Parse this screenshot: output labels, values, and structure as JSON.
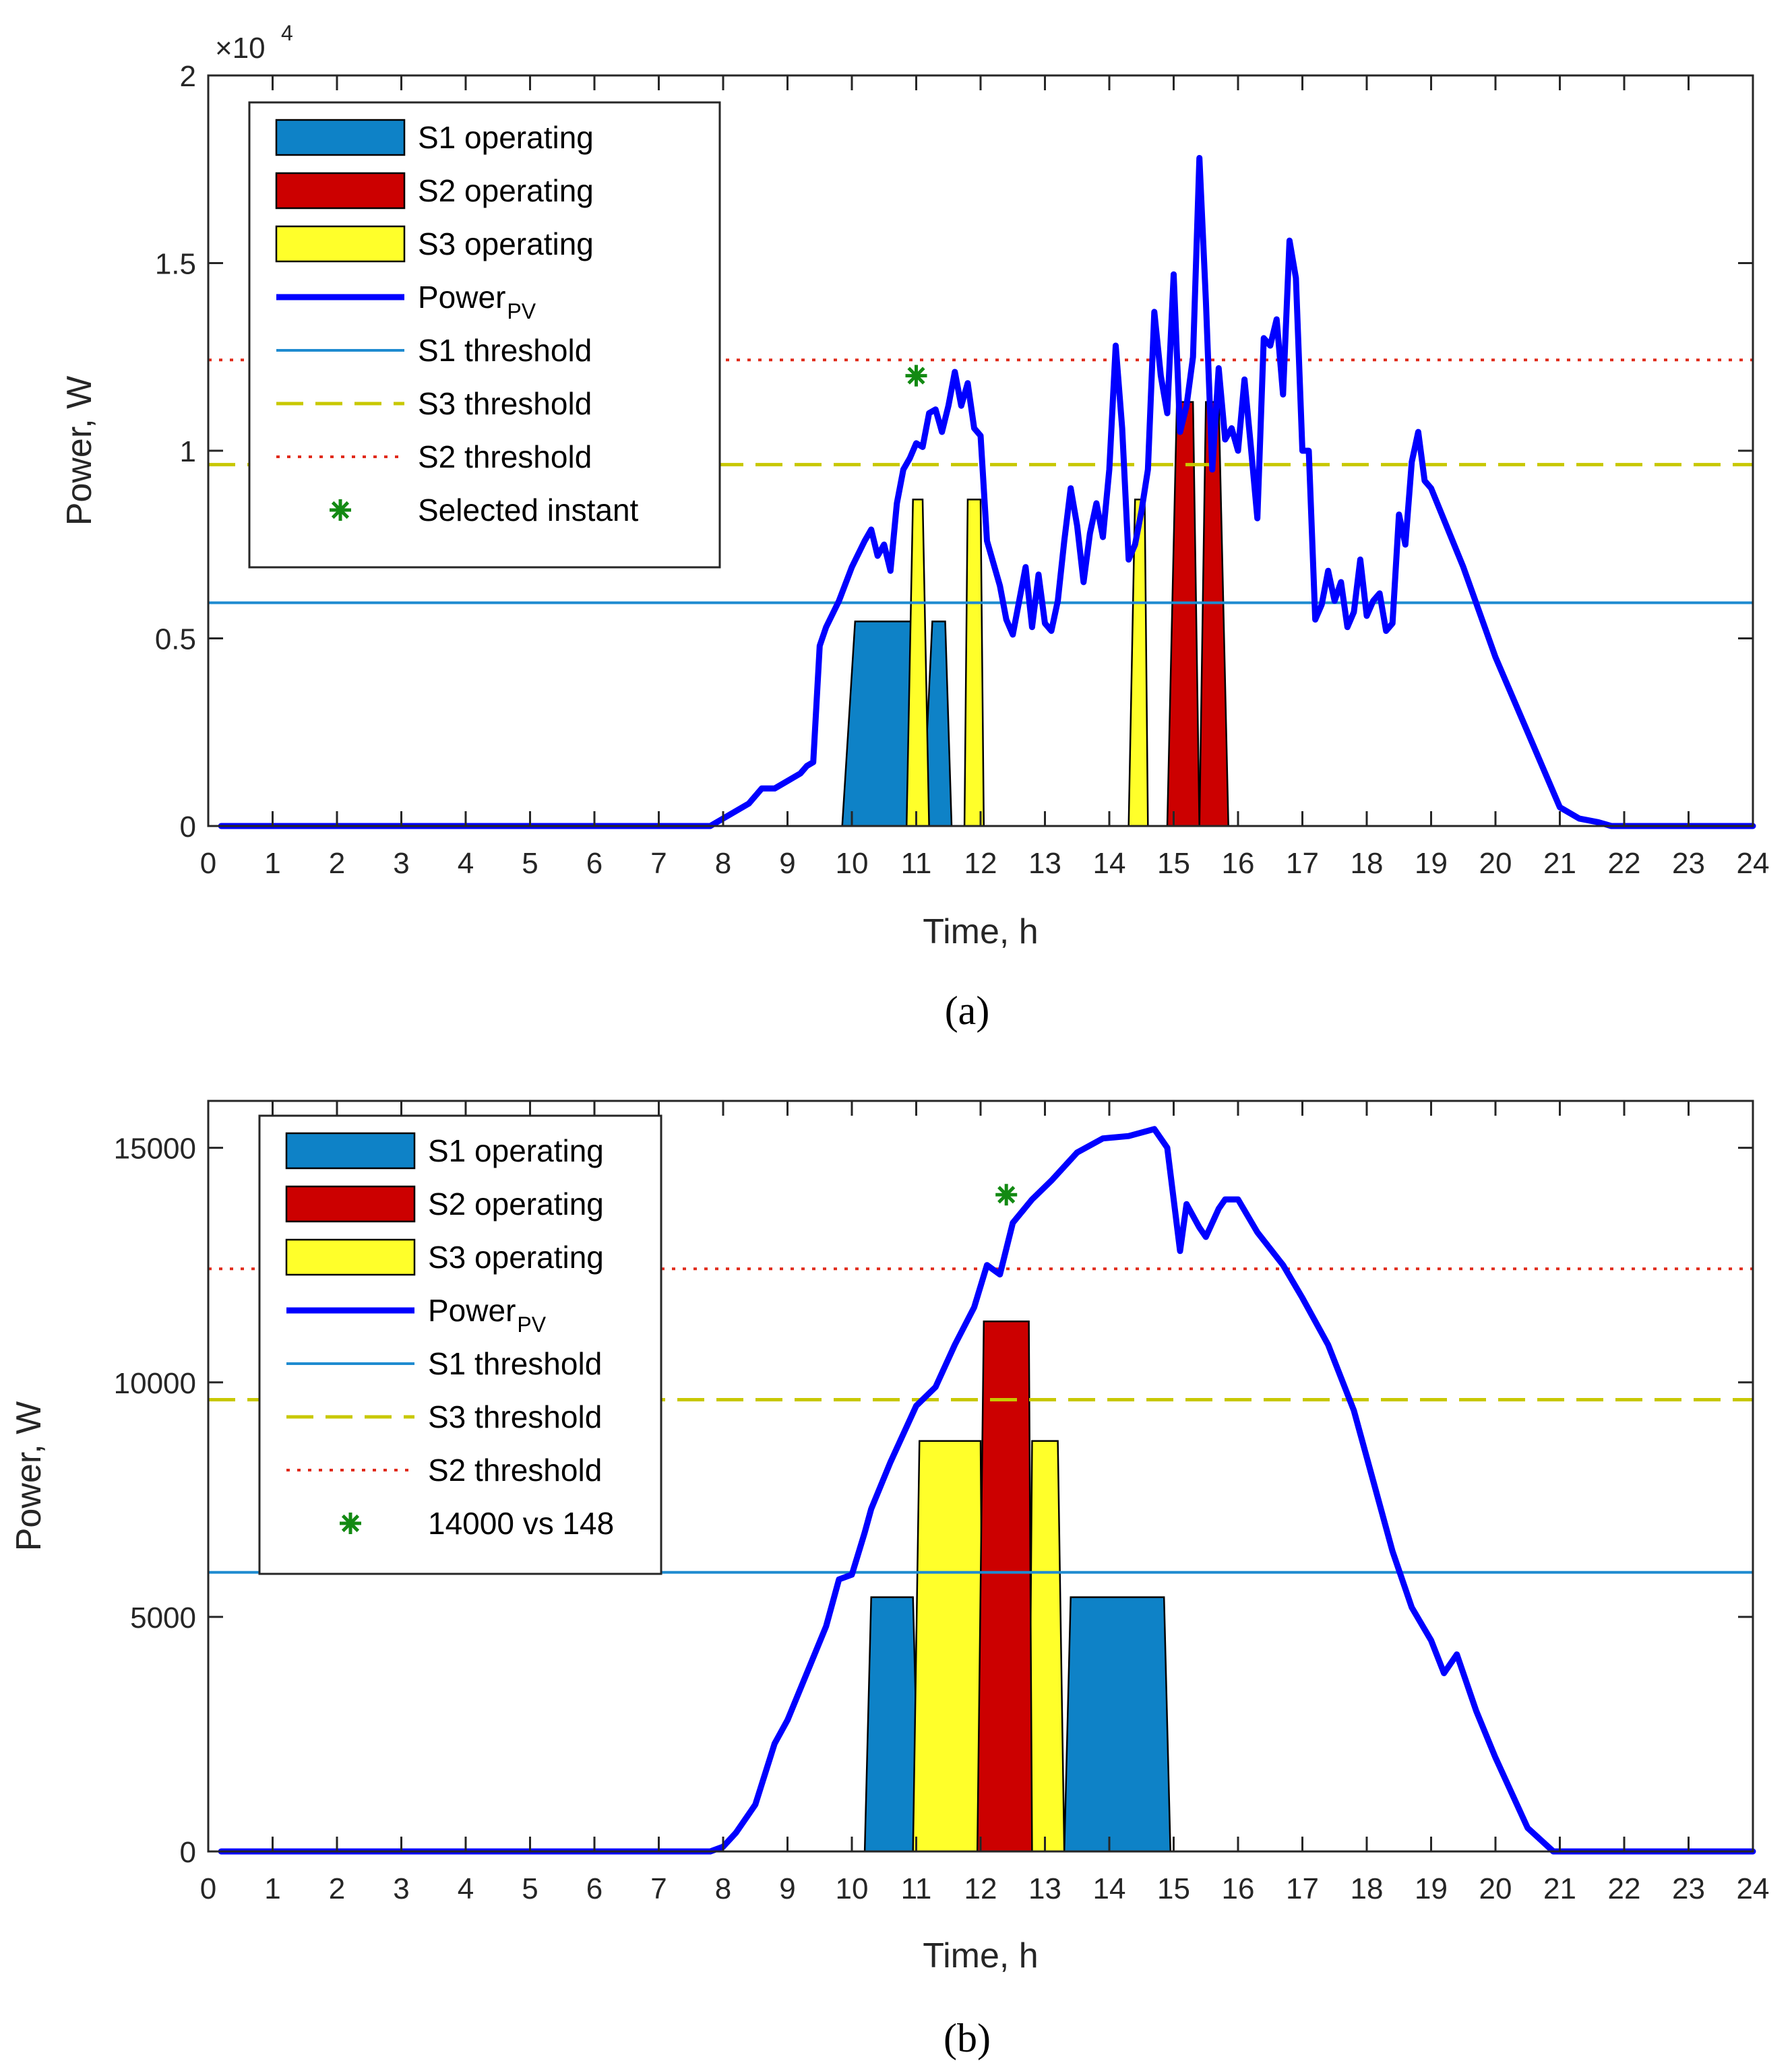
{
  "chart_data": [
    {
      "panel": "a",
      "type": "line",
      "caption": "(a)",
      "xlabel": "Time, h",
      "ylabel": "Power, W",
      "xlim": [
        0,
        24
      ],
      "ylim": [
        0,
        20000
      ],
      "x_ticks": [
        0,
        1,
        2,
        3,
        4,
        5,
        6,
        7,
        8,
        9,
        10,
        11,
        12,
        13,
        14,
        15,
        16,
        17,
        18,
        19,
        20,
        21,
        22,
        23,
        24
      ],
      "y_ticks": [
        0,
        5000,
        10000,
        15000,
        20000
      ],
      "y_tick_labels": [
        "0",
        "0.5",
        "1",
        "1.5",
        "2"
      ],
      "y_multiplier": {
        "base": "×10",
        "exp": "4"
      },
      "grid": false,
      "legend_position": "top-left",
      "legend": [
        {
          "key": "s1_op",
          "label": "S1 operating",
          "kind": "patch",
          "color": "#0e82c7"
        },
        {
          "key": "s2_op",
          "label": "S2 operating",
          "kind": "patch",
          "color": "#cc0000"
        },
        {
          "key": "s3_op",
          "label": "S3 operating",
          "kind": "patch",
          "color": "#ffff2a"
        },
        {
          "key": "pv",
          "label": "Power",
          "sub": "PV",
          "kind": "line",
          "color": "#0000ff"
        },
        {
          "key": "s1_th",
          "label": "S1 threshold",
          "kind": "line",
          "color": "#1f8bd0"
        },
        {
          "key": "s3_th",
          "label": "S3 threshold",
          "kind": "dash",
          "color": "#c8c800"
        },
        {
          "key": "s2_th",
          "label": "S2 threshold",
          "kind": "dot",
          "color": "#e02a1a"
        },
        {
          "key": "star",
          "label": "Selected instant",
          "kind": "star",
          "color": "#138a13"
        }
      ],
      "thresholds": {
        "s1": 5950,
        "s3": 9630,
        "s2": 12420
      },
      "selected_instant": {
        "x": 11.0,
        "y": 12000
      },
      "operations": [
        {
          "station": "S1",
          "color": "#0e82c7",
          "points": [
            [
              9.85,
              0
            ],
            [
              10.05,
              5450
            ],
            [
              10.95,
              5450
            ],
            [
              11.05,
              0
            ]
          ]
        },
        {
          "station": "S1",
          "color": "#0e82c7",
          "points": [
            [
              11.1,
              0
            ],
            [
              11.25,
              5450
            ],
            [
              11.45,
              5450
            ],
            [
              11.55,
              0
            ]
          ]
        },
        {
          "station": "S3",
          "color": "#ffff2a",
          "points": [
            [
              10.85,
              0
            ],
            [
              10.95,
              8700
            ],
            [
              11.1,
              8700
            ],
            [
              11.2,
              0
            ]
          ]
        },
        {
          "station": "S3",
          "color": "#ffff2a",
          "points": [
            [
              11.75,
              0
            ],
            [
              11.8,
              8700
            ],
            [
              12.0,
              8700
            ],
            [
              12.05,
              0
            ]
          ]
        },
        {
          "station": "S3",
          "color": "#ffff2a",
          "points": [
            [
              14.3,
              0
            ],
            [
              14.4,
              8700
            ],
            [
              14.55,
              8700
            ],
            [
              14.6,
              0
            ]
          ]
        },
        {
          "station": "S2",
          "color": "#cc0000",
          "points": [
            [
              14.9,
              0
            ],
            [
              15.05,
              11300
            ],
            [
              15.3,
              11300
            ],
            [
              15.4,
              0
            ]
          ]
        },
        {
          "station": "S2",
          "color": "#cc0000",
          "points": [
            [
              15.4,
              0
            ],
            [
              15.5,
              11300
            ],
            [
              15.7,
              11300
            ],
            [
              15.85,
              0
            ]
          ]
        }
      ],
      "pv": {
        "x": [
          0.2,
          7.5,
          7.8,
          8.0,
          8.2,
          8.4,
          8.6,
          8.8,
          9.0,
          9.2,
          9.3,
          9.4,
          9.5,
          9.6,
          9.8,
          10.0,
          10.2,
          10.3,
          10.4,
          10.5,
          10.6,
          10.7,
          10.8,
          10.9,
          11.0,
          11.1,
          11.2,
          11.3,
          11.4,
          11.5,
          11.6,
          11.7,
          11.8,
          11.9,
          12.0,
          12.1,
          12.2,
          12.3,
          12.4,
          12.5,
          12.6,
          12.7,
          12.8,
          12.9,
          13.0,
          13.1,
          13.2,
          13.3,
          13.4,
          13.5,
          13.6,
          13.7,
          13.8,
          13.9,
          14.0,
          14.1,
          14.2,
          14.3,
          14.4,
          14.5,
          14.6,
          14.7,
          14.8,
          14.9,
          15.0,
          15.1,
          15.2,
          15.3,
          15.4,
          15.5,
          15.6,
          15.7,
          15.8,
          15.9,
          16.0,
          16.1,
          16.2,
          16.3,
          16.4,
          16.5,
          16.6,
          16.7,
          16.8,
          16.9,
          17.0,
          17.1,
          17.2,
          17.3,
          17.4,
          17.5,
          17.6,
          17.7,
          17.8,
          17.9,
          18.0,
          18.1,
          18.2,
          18.3,
          18.4,
          18.5,
          18.6,
          18.7,
          18.8,
          18.9,
          19.0,
          19.5,
          20.0,
          20.5,
          21.0,
          21.3,
          21.6,
          21.8,
          22.0,
          24.0
        ],
        "y": [
          0,
          0,
          0,
          200,
          400,
          600,
          1000,
          1000,
          1200,
          1400,
          1600,
          1700,
          4800,
          5300,
          6000,
          6900,
          7600,
          7900,
          7200,
          7500,
          6800,
          8600,
          9500,
          9800,
          10200,
          10100,
          11000,
          11100,
          10500,
          11200,
          12100,
          11200,
          11800,
          10600,
          10400,
          7600,
          7000,
          6400,
          5500,
          5100,
          6000,
          6900,
          5300,
          6700,
          5400,
          5200,
          6000,
          7600,
          9000,
          8000,
          6500,
          7800,
          8600,
          7700,
          9500,
          12800,
          10600,
          7100,
          7500,
          8400,
          9500,
          13700,
          12000,
          11000,
          14700,
          10500,
          11200,
          12500,
          17800,
          14000,
          9500,
          12200,
          10300,
          10600,
          10000,
          11900,
          10100,
          8200,
          13000,
          12800,
          13500,
          11500,
          15600,
          14600,
          10000,
          10000,
          5500,
          5900,
          6800,
          6000,
          6500,
          5300,
          5700,
          7100,
          5600,
          6000,
          6200,
          5200,
          5400,
          8300,
          7500,
          9700,
          10500,
          9200,
          9000,
          6900,
          4500,
          2500,
          500,
          200,
          100,
          0,
          0,
          0
        ]
      }
    },
    {
      "panel": "b",
      "type": "line",
      "caption": "(b)",
      "xlabel": "Time, h",
      "ylabel": "Power, W",
      "xlim": [
        0,
        24
      ],
      "ylim": [
        0,
        16000
      ],
      "x_ticks": [
        0,
        1,
        2,
        3,
        4,
        5,
        6,
        7,
        8,
        9,
        10,
        11,
        12,
        13,
        14,
        15,
        16,
        17,
        18,
        19,
        20,
        21,
        22,
        23,
        24
      ],
      "y_ticks": [
        0,
        5000,
        10000,
        15000
      ],
      "y_tick_labels": [
        "0",
        "5000",
        "10000",
        "15000"
      ],
      "grid": false,
      "legend_position": "top-left",
      "legend": [
        {
          "key": "s1_op",
          "label": "S1 operating",
          "kind": "patch",
          "color": "#0e82c7"
        },
        {
          "key": "s2_op",
          "label": "S2 operating",
          "kind": "patch",
          "color": "#cc0000"
        },
        {
          "key": "s3_op",
          "label": "S3 operating",
          "kind": "patch",
          "color": "#ffff2a"
        },
        {
          "key": "pv",
          "label": "Power",
          "sub": "PV",
          "kind": "line",
          "color": "#0000ff"
        },
        {
          "key": "s1_th",
          "label": "S1 threshold",
          "kind": "line",
          "color": "#1f8bd0"
        },
        {
          "key": "s3_th",
          "label": "S3 threshold",
          "kind": "dash",
          "color": "#c8c800"
        },
        {
          "key": "s2_th",
          "label": "S2 threshold",
          "kind": "dot",
          "color": "#e02a1a"
        },
        {
          "key": "star",
          "label": "14000 vs 148",
          "kind": "star",
          "color": "#138a13"
        }
      ],
      "thresholds": {
        "s1": 5950,
        "s3": 9630,
        "s2": 12420
      },
      "selected_instant": {
        "x": 12.4,
        "y": 14000
      },
      "operations": [
        {
          "station": "S1",
          "color": "#0e82c7",
          "points": [
            [
              10.2,
              0
            ],
            [
              10.3,
              5420
            ],
            [
              10.95,
              5420
            ],
            [
              11.05,
              0
            ]
          ]
        },
        {
          "station": "S1",
          "color": "#0e82c7",
          "points": [
            [
              13.3,
              0
            ],
            [
              13.4,
              5420
            ],
            [
              14.85,
              5420
            ],
            [
              14.95,
              0
            ]
          ]
        },
        {
          "station": "S3",
          "color": "#ffff2a",
          "points": [
            [
              10.95,
              0
            ],
            [
              11.05,
              8750
            ],
            [
              12.0,
              8750
            ],
            [
              12.05,
              0
            ]
          ]
        },
        {
          "station": "S3",
          "color": "#ffff2a",
          "points": [
            [
              12.75,
              0
            ],
            [
              12.8,
              8750
            ],
            [
              13.2,
              8750
            ],
            [
              13.3,
              0
            ]
          ]
        },
        {
          "station": "S2",
          "color": "#cc0000",
          "points": [
            [
              11.95,
              0
            ],
            [
              12.05,
              11300
            ],
            [
              12.75,
              11300
            ],
            [
              12.8,
              0
            ]
          ]
        }
      ],
      "pv": {
        "x": [
          0.2,
          7.8,
          8.0,
          8.2,
          8.5,
          8.8,
          9.0,
          9.3,
          9.6,
          9.8,
          10.0,
          10.2,
          10.3,
          10.6,
          11.0,
          11.3,
          11.6,
          11.9,
          12.1,
          12.3,
          12.5,
          12.8,
          13.1,
          13.5,
          13.9,
          14.3,
          14.7,
          14.9,
          15.1,
          15.2,
          15.4,
          15.5,
          15.7,
          15.8,
          16.0,
          16.3,
          16.7,
          17.0,
          17.4,
          17.8,
          18.1,
          18.4,
          18.7,
          19.0,
          19.2,
          19.4,
          19.7,
          20.0,
          20.5,
          20.9,
          21.3,
          24.0
        ],
        "y": [
          0,
          0,
          100,
          400,
          1000,
          2300,
          2800,
          3800,
          4800,
          5800,
          5900,
          6800,
          7300,
          8300,
          9500,
          9900,
          10800,
          11600,
          12500,
          12300,
          13400,
          13900,
          14300,
          14900,
          15200,
          15250,
          15400,
          15000,
          12800,
          13800,
          13300,
          13100,
          13700,
          13900,
          13900,
          13200,
          12500,
          11800,
          10800,
          9400,
          7900,
          6400,
          5200,
          4500,
          3800,
          4200,
          3000,
          2000,
          500,
          0,
          0,
          0
        ]
      }
    }
  ]
}
